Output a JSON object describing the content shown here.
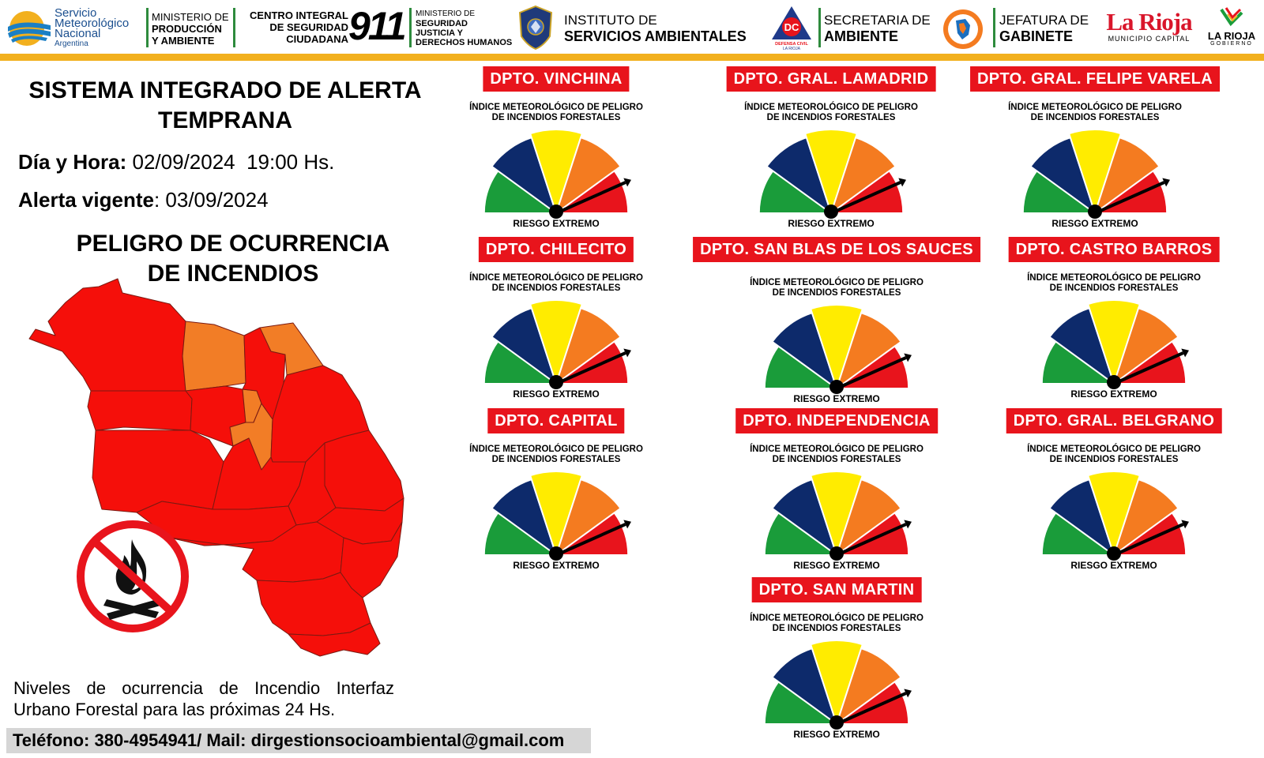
{
  "header": {
    "smn": {
      "line1": "Servicio",
      "line2": "Meteorológico",
      "line3": "Nacional",
      "line4": "Argentina"
    },
    "ministerio_produccion": {
      "line1": "MINISTERIO DE",
      "line2": "PRODUCCIÓN",
      "line3": "Y AMBIENTE"
    },
    "centro_integral": {
      "line1": "CENTRO INTEGRAL",
      "line2": "DE SEGURIDAD",
      "line3": "CIUDADANA",
      "number": "911"
    },
    "ministerio_seguridad": {
      "line1": "MINISTERIO DE",
      "line2": "SEGURIDAD",
      "line3": "JUSTICIA Y",
      "line4": "DERECHOS HUMANOS"
    },
    "policia_logo": "POLICIA LA RIOJA",
    "instituto": {
      "line1": "INSTITUTO DE",
      "line2": "SERVICIOS AMBIENTALES"
    },
    "defensa_civil": {
      "badge": "DC",
      "line1": "DEFENSA CIVIL",
      "line2": "LA RIOJA"
    },
    "secretaria": {
      "line1": "SECRETARIA DE",
      "line2": "AMBIENTE"
    },
    "jefatura": {
      "line1": "JEFATURA DE",
      "line2": "GABINETE"
    },
    "municipio": {
      "logo": "La Rioja",
      "sub": "MUNICIPIO CAPITAL"
    },
    "gobierno": {
      "logo": "LA RIOJA",
      "sub": "GOBIERNO"
    }
  },
  "main": {
    "title": "SISTEMA INTEGRADO DE ALERTA TEMPRANA",
    "fecha_label": "Día y Hora:",
    "fecha_value": "02/09/2024  19:00 Hs.",
    "alerta_label": "Alerta vigente",
    "alerta_value": ": 03/09/2024",
    "peligro_line1": "PELIGRO DE OCURRENCIA",
    "peligro_line2": "DE INCENDIOS",
    "niveles": "Niveles de ocurrencia de Incendio Interfaz Urbano Forestal para las próximas 24 Hs.",
    "contact": "Teléfono:  380-4954941/ Mail: dirgestionsocioambiental@gmail.com"
  },
  "gauge_common": {
    "title_line1": "ÍNDICE METEOROLÓGICO DE PELIGRO",
    "title_line2": "DE INCENDIOS FORESTALES",
    "colors": [
      "#1a9c3a",
      "#0d2a6b",
      "#ffec00",
      "#f47b20",
      "#e8141c"
    ]
  },
  "departments": [
    {
      "name": "DPTO. VINCHINA",
      "risk": "RIESGO EXTREMO",
      "level": 5
    },
    {
      "name": "DPTO. GRAL. LAMADRID",
      "risk": "RIESGO EXTREMO",
      "level": 5
    },
    {
      "name": "DPTO. GRAL. FELIPE VARELA",
      "risk": "RIESGO EXTREMO",
      "level": 5
    },
    {
      "name": "DPTO. CHILECITO",
      "risk": "RIESGO EXTREMO",
      "level": 5
    },
    {
      "name": "DPTO. SAN BLAS DE LOS SAUCES",
      "risk": "RIESGO EXTREMO",
      "level": 5
    },
    {
      "name": "DPTO. CASTRO BARROS",
      "risk": "RIESGO EXTREMO",
      "level": 5
    },
    {
      "name": "DPTO. CAPITAL",
      "risk": "RIESGO EXTREMO",
      "level": 5
    },
    {
      "name": "DPTO. INDEPENDENCIA",
      "risk": "RIESGO EXTREMO",
      "level": 5
    },
    {
      "name": "DPTO. GRAL. BELGRANO",
      "risk": "RIESGO EXTREMO",
      "level": 5
    },
    {
      "name": "DPTO. SAN MARTIN",
      "risk": "RIESGO EXTREMO",
      "level": 5
    }
  ],
  "map_colors": {
    "extremo": "#f50f0a",
    "alto": "#f27d26",
    "border": "#7a1a12"
  }
}
